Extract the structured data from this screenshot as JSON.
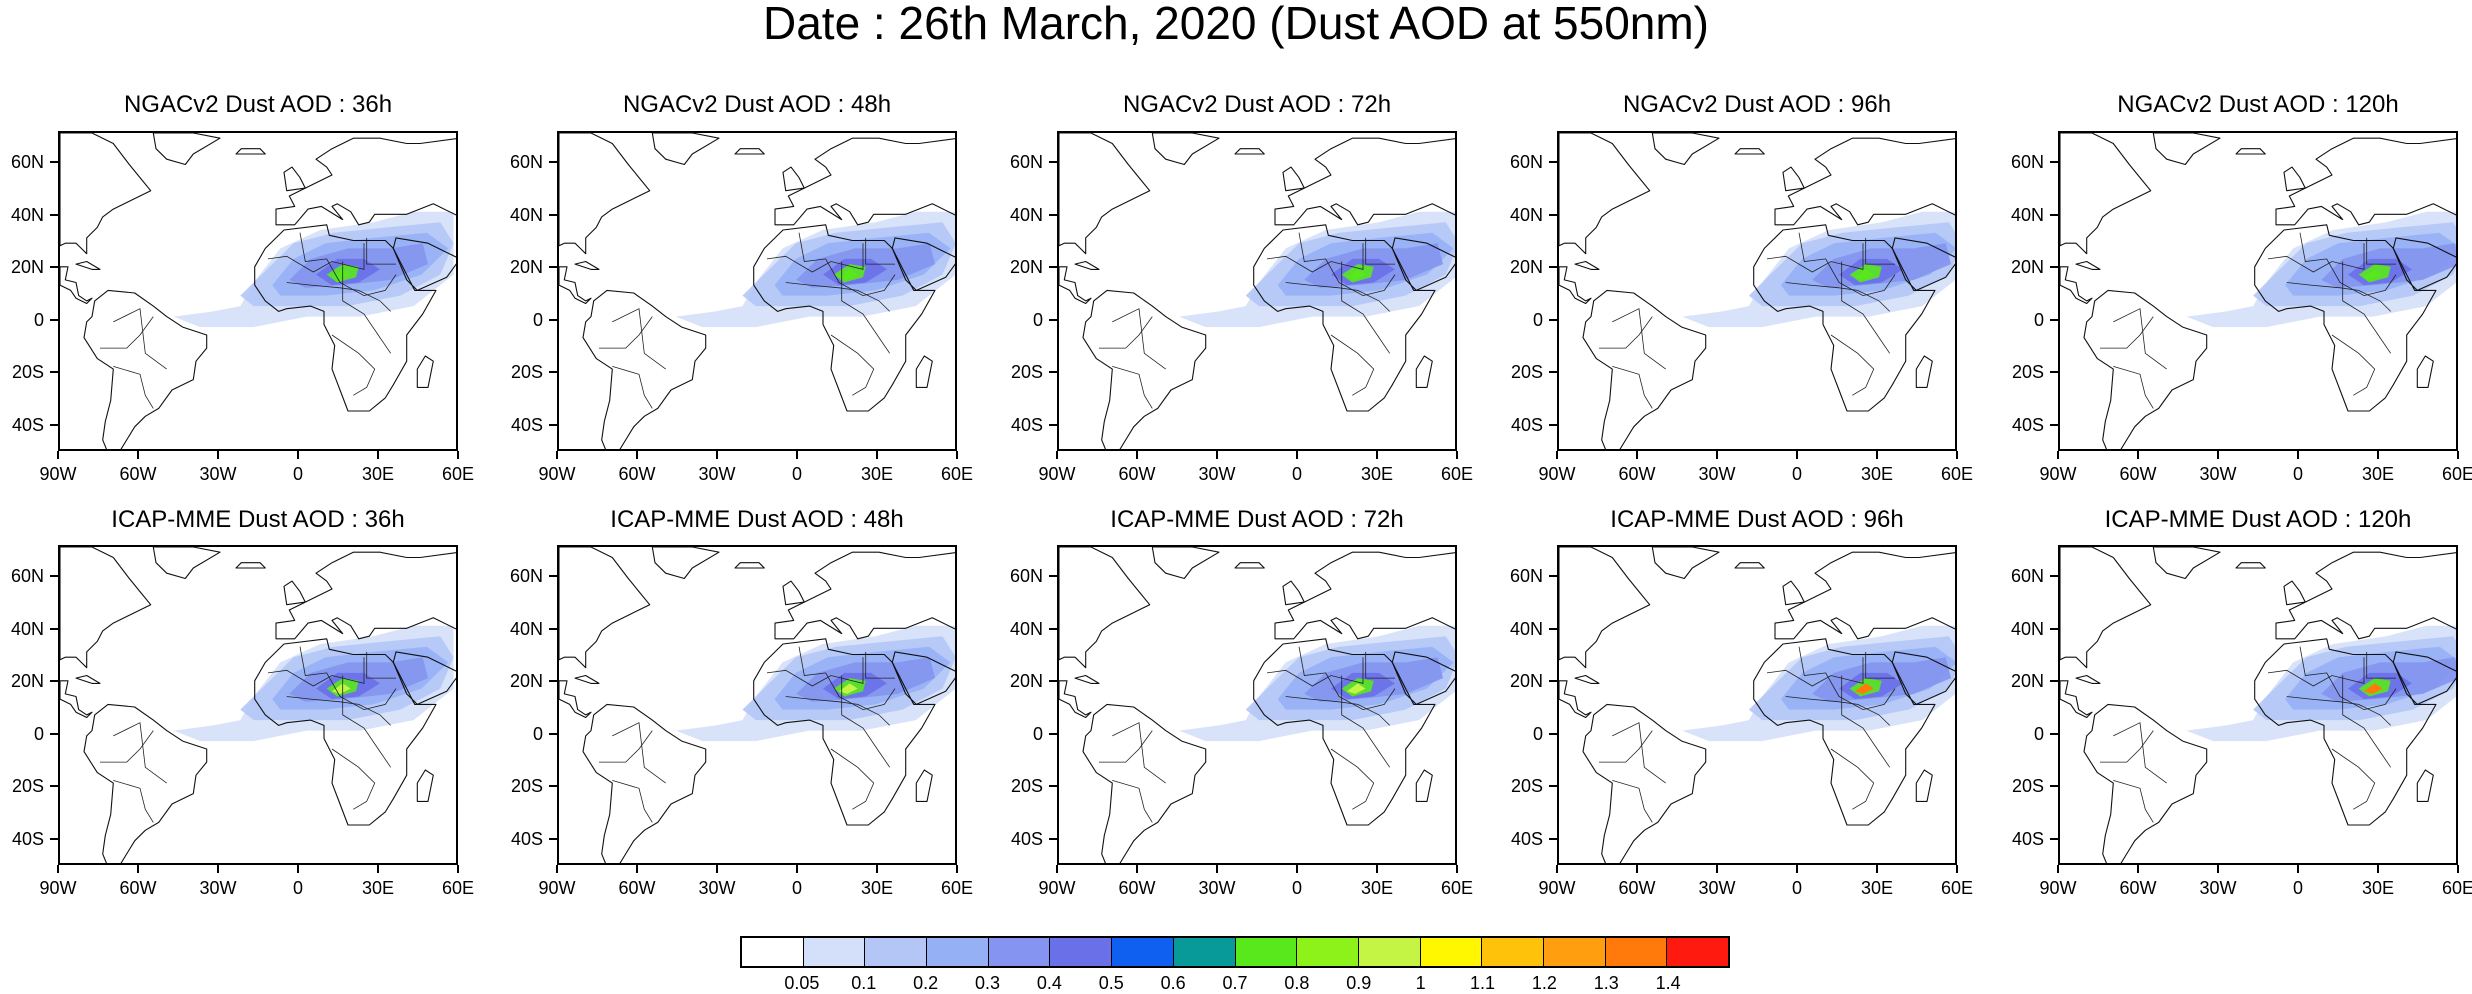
{
  "title": "Date : 26th March, 2020 (Dust AOD at 550nm)",
  "lat_labels": [
    "60N",
    "40N",
    "20N",
    "0",
    "20S",
    "40S"
  ],
  "lon_labels": [
    "90W",
    "60W",
    "30W",
    "0",
    "30E",
    "60E"
  ],
  "panels": [
    {
      "title": "NGACv2 Dust AOD : 36h",
      "model": "NGACv2",
      "lead": "36h",
      "hot_level": 8
    },
    {
      "title": "NGACv2 Dust AOD : 48h",
      "model": "NGACv2",
      "lead": "48h",
      "hot_level": 8
    },
    {
      "title": "NGACv2 Dust AOD : 72h",
      "model": "NGACv2",
      "lead": "72h",
      "hot_level": 8
    },
    {
      "title": "NGACv2 Dust AOD : 96h",
      "model": "NGACv2",
      "lead": "96h",
      "hot_level": 8
    },
    {
      "title": "NGACv2 Dust AOD : 120h",
      "model": "NGACv2",
      "lead": "120h",
      "hot_level": 8
    },
    {
      "title": "ICAP-MME Dust AOD : 36h",
      "model": "ICAP-MME",
      "lead": "36h",
      "hot_level": 10
    },
    {
      "title": "ICAP-MME Dust AOD : 48h",
      "model": "ICAP-MME",
      "lead": "48h",
      "hot_level": 10
    },
    {
      "title": "ICAP-MME Dust AOD : 72h",
      "model": "ICAP-MME",
      "lead": "72h",
      "hot_level": 10
    },
    {
      "title": "ICAP-MME Dust AOD : 96h",
      "model": "ICAP-MME",
      "lead": "96h",
      "hot_level": 14
    },
    {
      "title": "ICAP-MME Dust AOD : 120h",
      "model": "ICAP-MME",
      "lead": "120h",
      "hot_level": 14
    }
  ],
  "colorbar": {
    "labels": [
      "0.05",
      "0.1",
      "0.2",
      "0.3",
      "0.4",
      "0.5",
      "0.6",
      "0.7",
      "0.8",
      "0.9",
      "1",
      "1.1",
      "1.2",
      "1.3",
      "1.4"
    ],
    "colors": [
      "#ffffff",
      "#d4e0fa",
      "#b4c6f6",
      "#96b0f5",
      "#8494f0",
      "#6a70e8",
      "#0f5ff0",
      "#089a98",
      "#58e81c",
      "#8cf21a",
      "#c4f545",
      "#fff700",
      "#ffc20a",
      "#ff9e0f",
      "#ff7a0a",
      "#ff1a10"
    ]
  }
}
